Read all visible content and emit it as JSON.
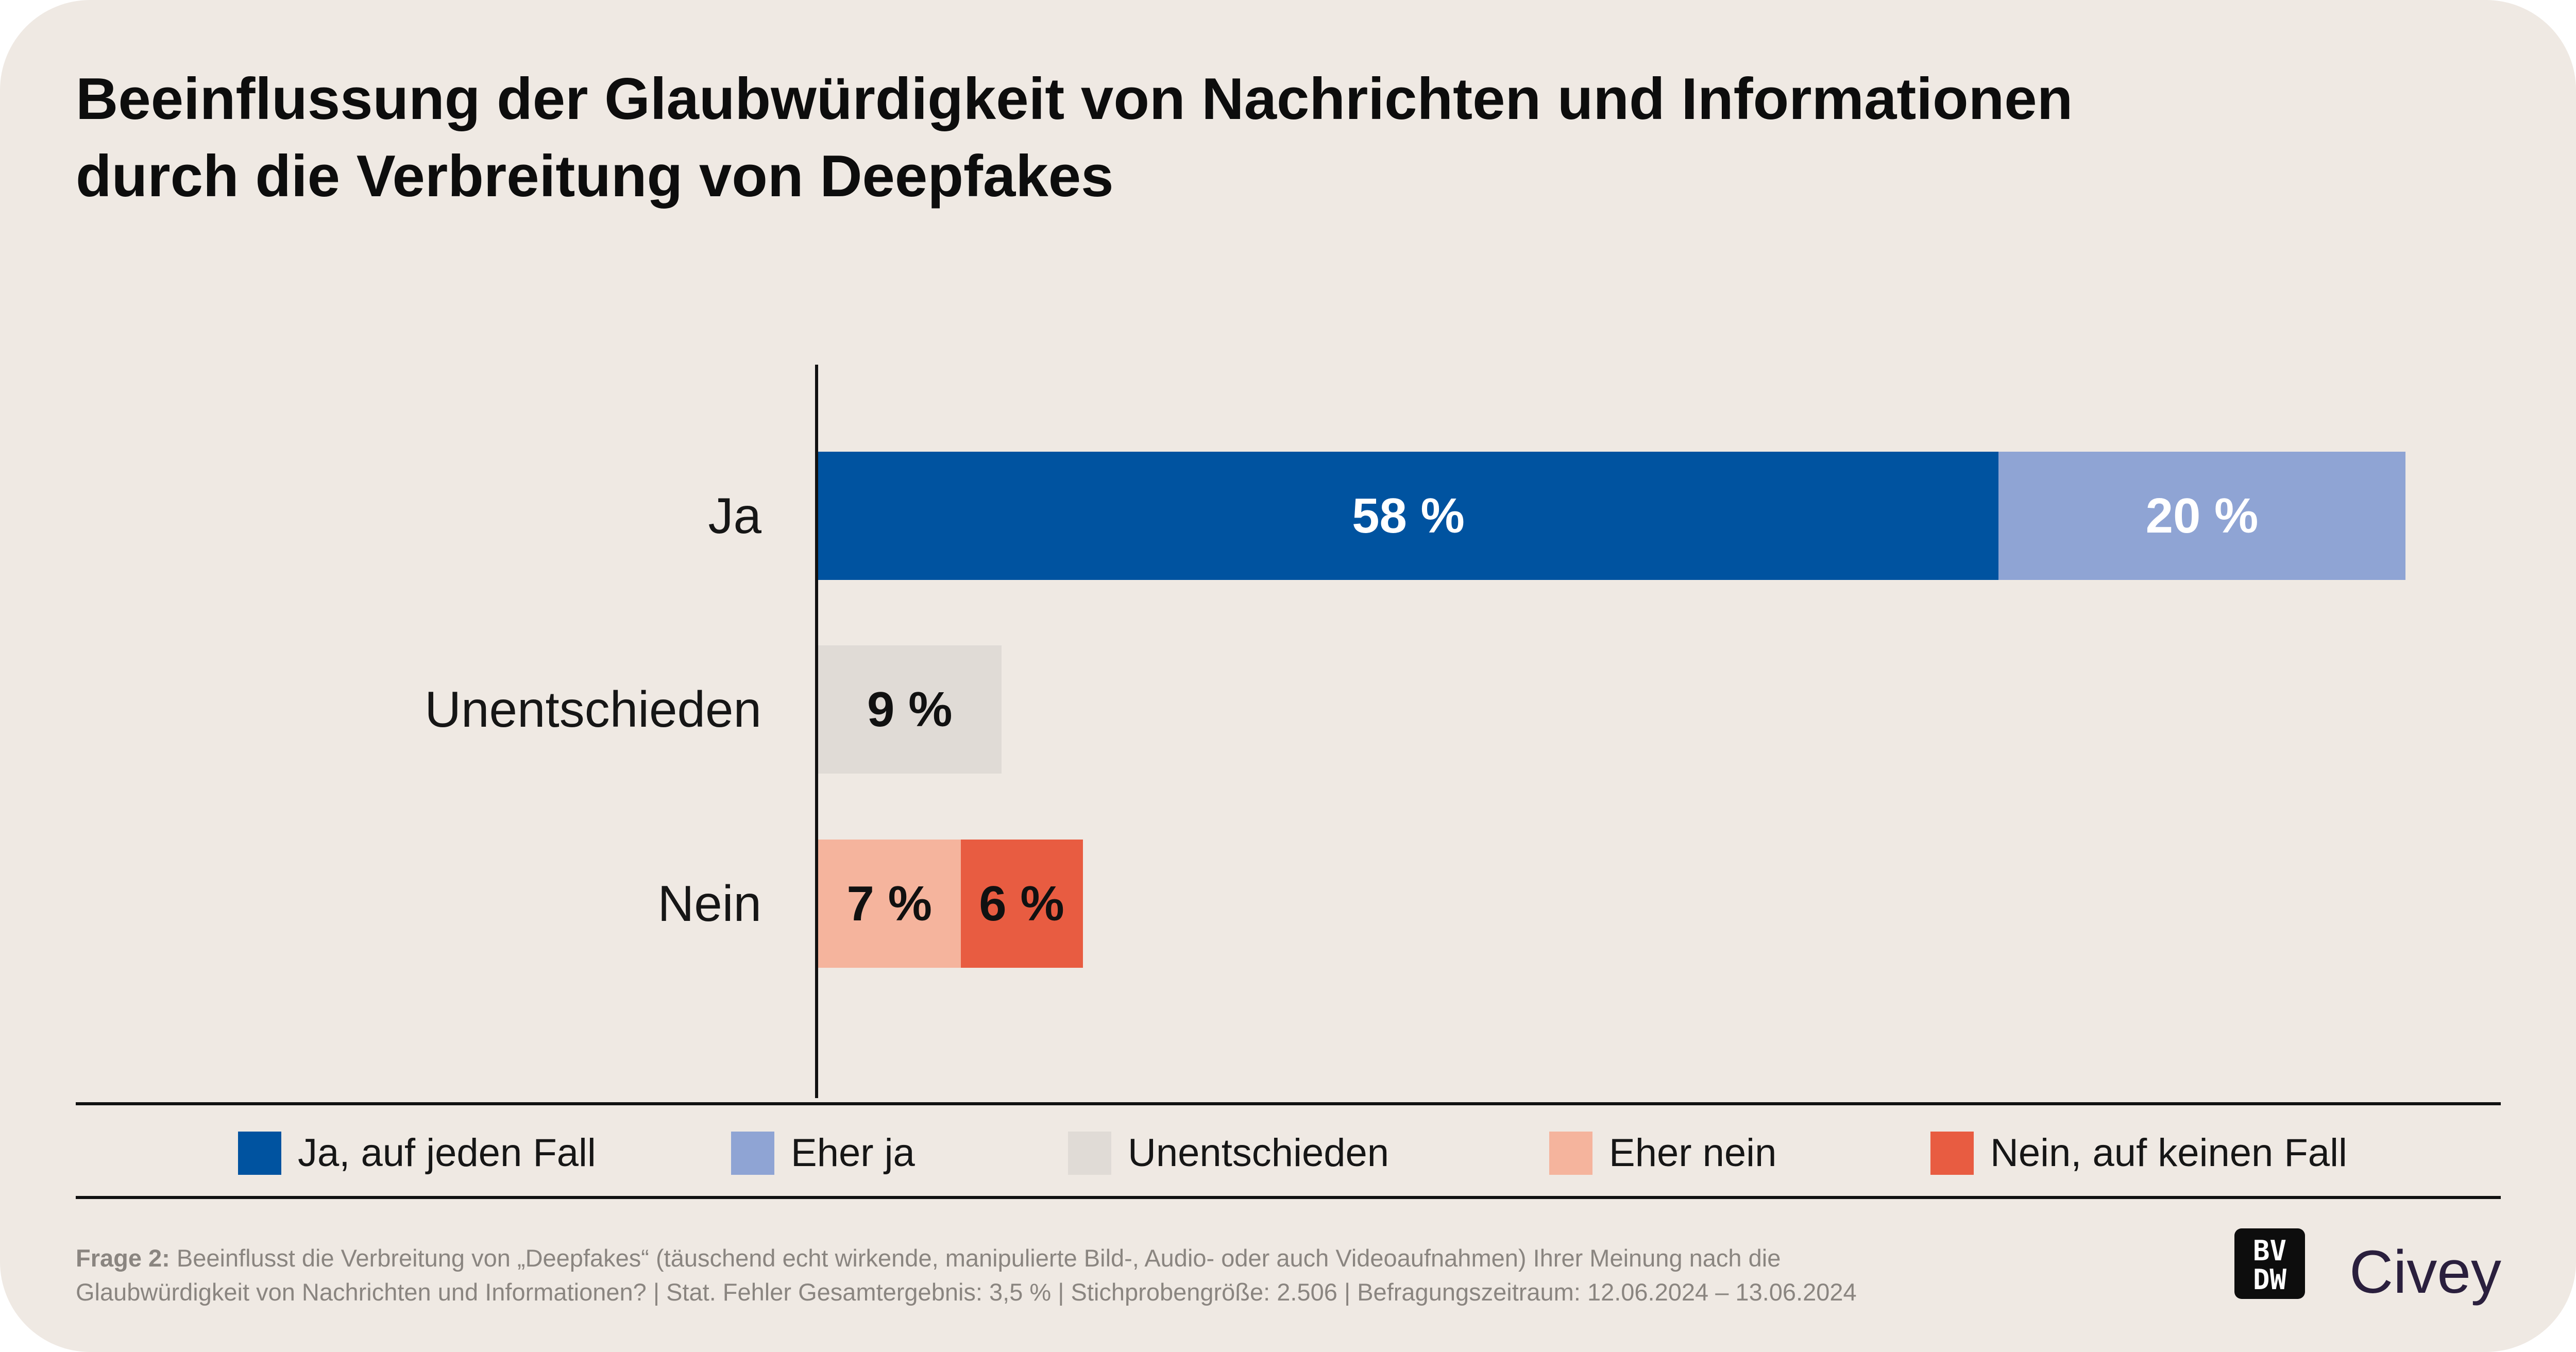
{
  "title": {
    "line1": "Beeinflussung der Glaubwürdigkeit von Nachrichten und Informationen",
    "line2": "durch die Verbreitung von Deepfakes"
  },
  "chart_data": {
    "type": "bar",
    "orientation": "horizontal",
    "stacked": true,
    "title": "Beeinflussung der Glaubwürdigkeit von Nachrichten und Informationen durch die Verbreitung von Deepfakes",
    "xlabel": "",
    "ylabel": "",
    "xlim": [
      0,
      100
    ],
    "grid": false,
    "legend_position": "bottom",
    "categories": [
      "Ja",
      "Unentschieden",
      "Nein"
    ],
    "series": [
      {
        "name": "Ja, auf jeden Fall",
        "color": "#0053a0",
        "label_color": "#ffffff",
        "values": [
          58,
          0,
          0
        ],
        "labels": [
          "58 %",
          "",
          ""
        ]
      },
      {
        "name": "Eher ja",
        "color": "#8fa4d4",
        "label_color": "#ffffff",
        "values": [
          20,
          0,
          0
        ],
        "labels": [
          "20 %",
          "",
          ""
        ]
      },
      {
        "name": "Unentschieden",
        "color": "#e0dbd6",
        "label_color": "#111111",
        "values": [
          0,
          9,
          0
        ],
        "labels": [
          "",
          "9 %",
          ""
        ]
      },
      {
        "name": "Eher nein",
        "color": "#f5b49d",
        "label_color": "#111111",
        "values": [
          0,
          0,
          7
        ],
        "labels": [
          "",
          "",
          "7 %"
        ]
      },
      {
        "name": "Nein, auf keinen Fall",
        "color": "#e85c41",
        "label_color": "#111111",
        "values": [
          0,
          0,
          6
        ],
        "labels": [
          "",
          "",
          "6 %"
        ]
      }
    ]
  },
  "legend": [
    {
      "label": "Ja, auf jeden Fall",
      "color": "#0053a0"
    },
    {
      "label": "Eher ja",
      "color": "#8fa4d4"
    },
    {
      "label": "Unentschieden",
      "color": "#e0dbd6"
    },
    {
      "label": "Eher nein",
      "color": "#f5b49d"
    },
    {
      "label": "Nein, auf keinen Fall",
      "color": "#e85c41"
    }
  ],
  "footnote": {
    "bold_prefix": "Frage 2:",
    "line1_rest": " Beeinflusst die Verbreitung von „Deepfakes“ (täuschend echt wirkende, manipulierte Bild-, Audio- oder auch Videoaufnahmen) Ihrer Meinung nach die",
    "line2": "Glaubwürdigkeit von Nachrichten und Informationen? | Stat. Fehler Gesamtergebnis: 3,5 % | Stichprobengröße: 2.506 | Befragungszeitraum: 12.06.2024 – 13.06.2024"
  },
  "logos": {
    "bvdw_top": "BV",
    "bvdw_bottom": "DW",
    "civey": "Civey"
  },
  "colors": {
    "background": "#efe9e3",
    "text": "#111111",
    "footnote": "#8a8580",
    "civey": "#2a1f3d"
  }
}
